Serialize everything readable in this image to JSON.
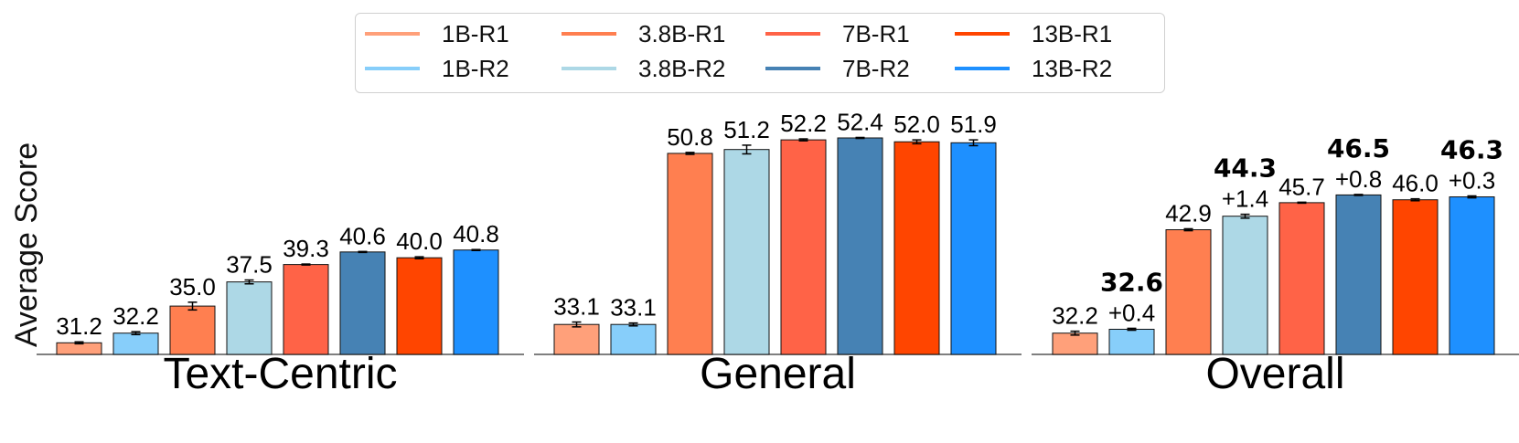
{
  "chart_data": {
    "type": "bar",
    "ylabel": "Average Score",
    "ylim": [
      30,
      54
    ],
    "legend_position": "top-center",
    "series_meta": [
      {
        "name": "1B-R1",
        "color": "#FFA07A"
      },
      {
        "name": "1B-R2",
        "color": "#87CEFA"
      },
      {
        "name": "3.8B-R1",
        "color": "#FF7F50"
      },
      {
        "name": "3.8B-R2",
        "color": "#ADD8E6"
      },
      {
        "name": "7B-R1",
        "color": "#FF6347"
      },
      {
        "name": "7B-R2",
        "color": "#4682B4"
      },
      {
        "name": "13B-R1",
        "color": "#FF4500"
      },
      {
        "name": "13B-R2",
        "color": "#1E90FF"
      }
    ],
    "panels": [
      {
        "category": "Text-Centric",
        "values": [
          31.2,
          32.2,
          35.0,
          37.5,
          39.3,
          40.6,
          40.0,
          40.8
        ],
        "errors": [
          0.1,
          0.15,
          0.4,
          0.2,
          0.05,
          0.05,
          0.1,
          0.05
        ],
        "labels": [
          "31.2",
          "32.2",
          "35.0",
          "37.5",
          "39.3",
          "40.6",
          "40.0",
          "40.8"
        ],
        "bold_labels": [
          "",
          "",
          "",
          "",
          "",
          "",
          "",
          ""
        ],
        "delta_labels": [
          "",
          "",
          "",
          "",
          "",
          "",
          "",
          ""
        ]
      },
      {
        "category": "General",
        "values": [
          33.1,
          33.1,
          50.8,
          51.2,
          52.2,
          52.4,
          52.0,
          51.9
        ],
        "errors": [
          0.25,
          0.15,
          0.1,
          0.45,
          0.1,
          0.05,
          0.2,
          0.3
        ],
        "labels": [
          "33.1",
          "33.1",
          "50.8",
          "51.2",
          "52.2",
          "52.4",
          "52.0",
          "51.9"
        ],
        "bold_labels": [
          "",
          "",
          "",
          "",
          "",
          "",
          "",
          ""
        ],
        "delta_labels": [
          "",
          "",
          "",
          "",
          "",
          "",
          "",
          ""
        ]
      },
      {
        "category": "Overall",
        "values": [
          32.2,
          32.6,
          42.9,
          44.3,
          45.7,
          46.5,
          46.0,
          46.3
        ],
        "errors": [
          0.2,
          0.1,
          0.1,
          0.2,
          0.05,
          0.05,
          0.1,
          0.1
        ],
        "labels": [
          "32.2",
          "",
          "42.9",
          "",
          "45.7",
          "",
          "46.0",
          ""
        ],
        "bold_labels": [
          "",
          "32.6",
          "",
          "44.3",
          "",
          "46.5",
          "",
          "46.3"
        ],
        "delta_labels": [
          "",
          "+0.4",
          "",
          "+1.4",
          "",
          "+0.8",
          "",
          "+0.3"
        ]
      }
    ]
  }
}
